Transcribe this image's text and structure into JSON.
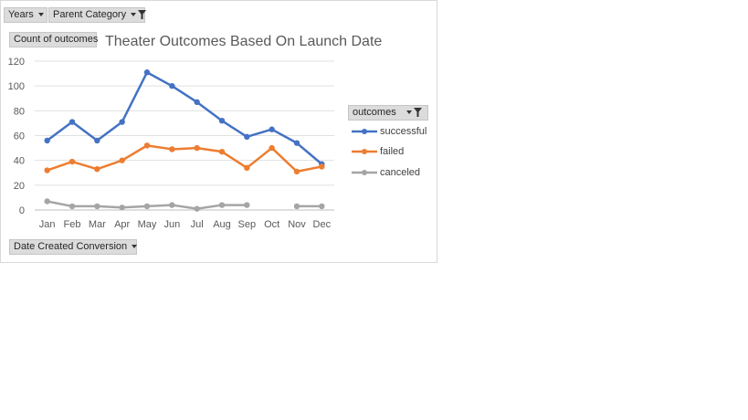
{
  "filters": {
    "years_label": "Years",
    "parent_category_label": "Parent Category",
    "count_label": "Count of outcomes",
    "date_label": "Date Created Conversion",
    "legend_header": "outcomes"
  },
  "chart_data": {
    "type": "line",
    "title": "Theater Outcomes  Based On Launch Date",
    "xlabel": "",
    "ylabel": "",
    "categories": [
      "Jan",
      "Feb",
      "Mar",
      "Apr",
      "May",
      "Jun",
      "Jul",
      "Aug",
      "Sep",
      "Oct",
      "Nov",
      "Dec"
    ],
    "ylim": [
      0,
      120
    ],
    "yticks": [
      0,
      20,
      40,
      60,
      80,
      100,
      120
    ],
    "grid": true,
    "legend_placement": "right",
    "series": [
      {
        "name": "successful",
        "color": "#4472c4",
        "values": [
          56,
          71,
          56,
          71,
          111,
          100,
          87,
          72,
          59,
          65,
          54,
          37
        ]
      },
      {
        "name": "failed",
        "color": "#ed7d31",
        "values": [
          32,
          39,
          33,
          40,
          52,
          49,
          50,
          47,
          34,
          50,
          31,
          35
        ]
      },
      {
        "name": "canceled",
        "color": "#a5a5a5",
        "values": [
          7,
          3,
          3,
          2,
          3,
          4,
          1,
          4,
          4,
          null,
          3,
          3
        ]
      }
    ]
  }
}
